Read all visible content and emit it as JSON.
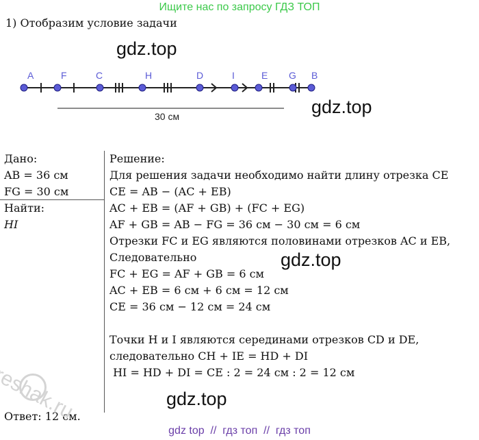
{
  "header": {
    "banner": "Ищите нас по запросу ГДЗ ТОП",
    "step": "1) Отобразим условие задачи"
  },
  "diagram": {
    "points": [
      "A",
      "F",
      "C",
      "H",
      "D",
      "I",
      "E",
      "G",
      "B"
    ],
    "measure": "30 см"
  },
  "given": {
    "title": "Дано:",
    "lines": [
      "AB = 36 см",
      "FG = 30 см"
    ],
    "find_title": "Найти:",
    "find": "HI"
  },
  "solution": {
    "title": "Решение:",
    "lines": [
      "Для решения задачи необходимо найти длину отрезка CE",
      "CE = AB − (AC + EB)",
      "AC + EB = (AF + GB) + (FC + EG)",
      "AF + GB = AB − FG = 36 см − 30 см = 6 см",
      "Отрезки FC и EG являются половинами отрезков AC и EB,",
      "Следовательно",
      "FC + EG = AF + GB = 6 см",
      "AC + EB = 6 см + 6 см = 12 см",
      "CE = 36 см − 12 см = 24 см",
      "Точки H и I являются серединами отрезков CD и DE,",
      "следовательно CH + IE = HD + DI",
      " HI = HD + DI = CE : 2 = 24 см : 2 = 12 см"
    ]
  },
  "answer": "Ответ: 12 см.",
  "watermarks": [
    "gdz.top",
    "gdz.top",
    "gdz.top",
    "gdz.top",
    "reshak.ru"
  ],
  "footer": "gdz top  //  гдз топ  //  гдз топ"
}
